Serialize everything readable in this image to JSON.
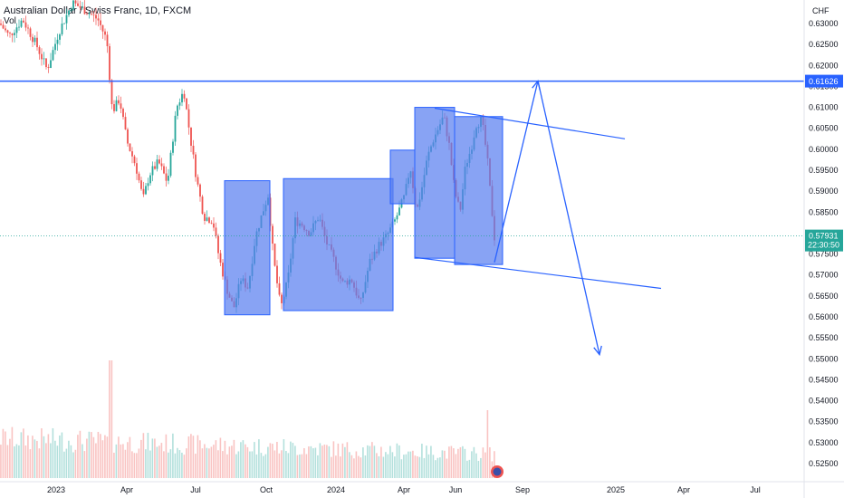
{
  "chart_data": {
    "type": "candlestick",
    "title": "Australian Dollar / Swiss Franc, 1D, FXCM",
    "volume_label": "Vol",
    "currency": "CHF",
    "y_axis_ticks": [
      "0.63000",
      "0.62500",
      "0.62000",
      "0.61500",
      "0.61000",
      "0.60500",
      "0.60000",
      "0.59500",
      "0.59000",
      "0.58500",
      "0.58000",
      "0.57500",
      "0.57000",
      "0.56500",
      "0.56000",
      "0.55500",
      "0.55000",
      "0.54500",
      "0.54000",
      "0.53500",
      "0.53000",
      "0.52500"
    ],
    "y_ticks_values": [
      0.63,
      0.625,
      0.62,
      0.615,
      0.61,
      0.605,
      0.6,
      0.595,
      0.59,
      0.585,
      0.58,
      0.575,
      0.57,
      0.565,
      0.56,
      0.555,
      0.55,
      0.545,
      0.54,
      0.535,
      0.53,
      0.525
    ],
    "ylim": [
      0.5225,
      0.6325
    ],
    "x_axis_labels": [
      "2023",
      "Apr",
      "Jul",
      "Oct",
      "2024",
      "Apr",
      "Jun",
      "Sep",
      "2025",
      "Apr",
      "Jul"
    ],
    "horizontal_line": {
      "value": 0.61626,
      "label": "0.61626",
      "color": "#2962ff"
    },
    "current_price": {
      "value": 0.57931,
      "label": "0.57931",
      "countdown": "22:30:50",
      "color": "#26a69a"
    },
    "colors": {
      "up": "#26a69a",
      "down": "#ef5350",
      "drawing": "#2962ff",
      "box_fill": "#5a7ff0"
    },
    "price_path": [
      [
        0,
        0.63
      ],
      [
        10,
        0.627
      ],
      [
        25,
        0.631
      ],
      [
        40,
        0.625
      ],
      [
        52,
        0.619
      ],
      [
        65,
        0.628
      ],
      [
        80,
        0.635
      ],
      [
        95,
        0.633
      ],
      [
        108,
        0.631
      ],
      [
        118,
        0.626
      ],
      [
        124,
        0.609
      ],
      [
        132,
        0.612
      ],
      [
        140,
        0.602
      ],
      [
        150,
        0.596
      ],
      [
        158,
        0.588
      ],
      [
        165,
        0.594
      ],
      [
        175,
        0.597
      ],
      [
        185,
        0.592
      ],
      [
        195,
        0.61
      ],
      [
        203,
        0.614
      ],
      [
        210,
        0.603
      ],
      [
        217,
        0.593
      ],
      [
        225,
        0.584
      ],
      [
        235,
        0.583
      ],
      [
        242,
        0.574
      ],
      [
        250,
        0.567
      ],
      [
        258,
        0.562
      ],
      [
        266,
        0.569
      ],
      [
        274,
        0.567
      ],
      [
        282,
        0.579
      ],
      [
        290,
        0.585
      ],
      [
        296,
        0.589
      ],
      [
        302,
        0.574
      ],
      [
        310,
        0.562
      ],
      [
        318,
        0.569
      ],
      [
        326,
        0.583
      ],
      [
        334,
        0.582
      ],
      [
        342,
        0.58
      ],
      [
        352,
        0.584
      ],
      [
        360,
        0.578
      ],
      [
        368,
        0.574
      ],
      [
        378,
        0.568
      ],
      [
        388,
        0.569
      ],
      [
        398,
        0.563
      ],
      [
        408,
        0.573
      ],
      [
        418,
        0.577
      ],
      [
        426,
        0.579
      ],
      [
        434,
        0.582
      ],
      [
        440,
        0.585
      ],
      [
        447,
        0.589
      ],
      [
        453,
        0.596
      ],
      [
        460,
        0.585
      ],
      [
        466,
        0.591
      ],
      [
        472,
        0.598
      ],
      [
        478,
        0.602
      ],
      [
        484,
        0.605
      ],
      [
        490,
        0.608
      ],
      [
        496,
        0.601
      ],
      [
        502,
        0.59
      ],
      [
        508,
        0.585
      ],
      [
        514,
        0.596
      ],
      [
        520,
        0.6
      ],
      [
        526,
        0.606
      ],
      [
        532,
        0.607
      ],
      [
        538,
        0.598
      ],
      [
        542,
        0.588
      ],
      [
        546,
        0.579
      ]
    ],
    "boxes": [
      {
        "x1": 248,
        "x2": 298,
        "y_top": 0.5925,
        "y_bottom": 0.5605
      },
      {
        "x1": 313,
        "x2": 434,
        "y_top": 0.593,
        "y_bottom": 0.5615
      },
      {
        "x1": 431,
        "x2": 458,
        "y_top": 0.5998,
        "y_bottom": 0.587
      },
      {
        "x1": 458,
        "x2": 502,
        "y_top": 0.61,
        "y_bottom": 0.574
      },
      {
        "x1": 502,
        "x2": 555,
        "y_top": 0.6078,
        "y_bottom": 0.5725
      }
    ],
    "trend_lines": [
      {
        "x1": 480,
        "y1": 0.6098,
        "x2": 690,
        "y2": 0.6025
      },
      {
        "x1": 458,
        "y1": 0.5742,
        "x2": 730,
        "y2": 0.5668
      }
    ],
    "projection": [
      {
        "x": 546,
        "y": 0.573
      },
      {
        "x": 594,
        "y": 0.6163
      },
      {
        "x": 662,
        "y": 0.551
      }
    ]
  }
}
